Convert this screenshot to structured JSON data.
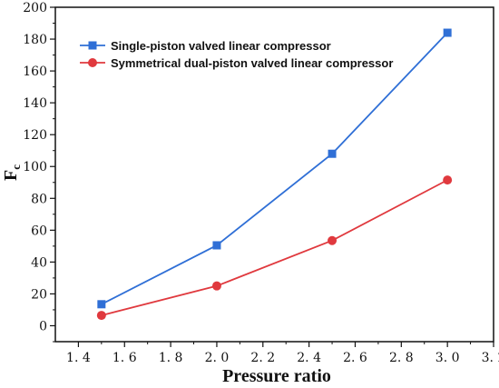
{
  "chart_data": {
    "type": "line",
    "title": "",
    "xlabel": "Pressure ratio",
    "ylabel": "F",
    "ylabel_subscript": "c",
    "xlim": [
      1.3,
      3.2
    ],
    "ylim": [
      -10,
      200
    ],
    "x_ticks": [
      "1.4",
      "1.6",
      "1.8",
      "2.0",
      "2.2",
      "2.4",
      "2.6",
      "2.8",
      "3.0",
      "3.2"
    ],
    "y_ticks": [
      "0",
      "20",
      "40",
      "60",
      "80",
      "100",
      "120",
      "140",
      "160",
      "180",
      "200"
    ],
    "grid": false,
    "legend_position": "top-left",
    "x": [
      1.5,
      2.0,
      2.5,
      3.0
    ],
    "series": [
      {
        "name": "Single-piston valved linear compressor",
        "values": [
          13.5,
          50.5,
          108,
          184
        ],
        "color": "#2f6fd6",
        "marker": "square"
      },
      {
        "name": "Symmetrical dual-piston valved linear compressor",
        "values": [
          6.5,
          25,
          53.5,
          91.5
        ],
        "color": "#e0393e",
        "marker": "circle"
      }
    ]
  }
}
